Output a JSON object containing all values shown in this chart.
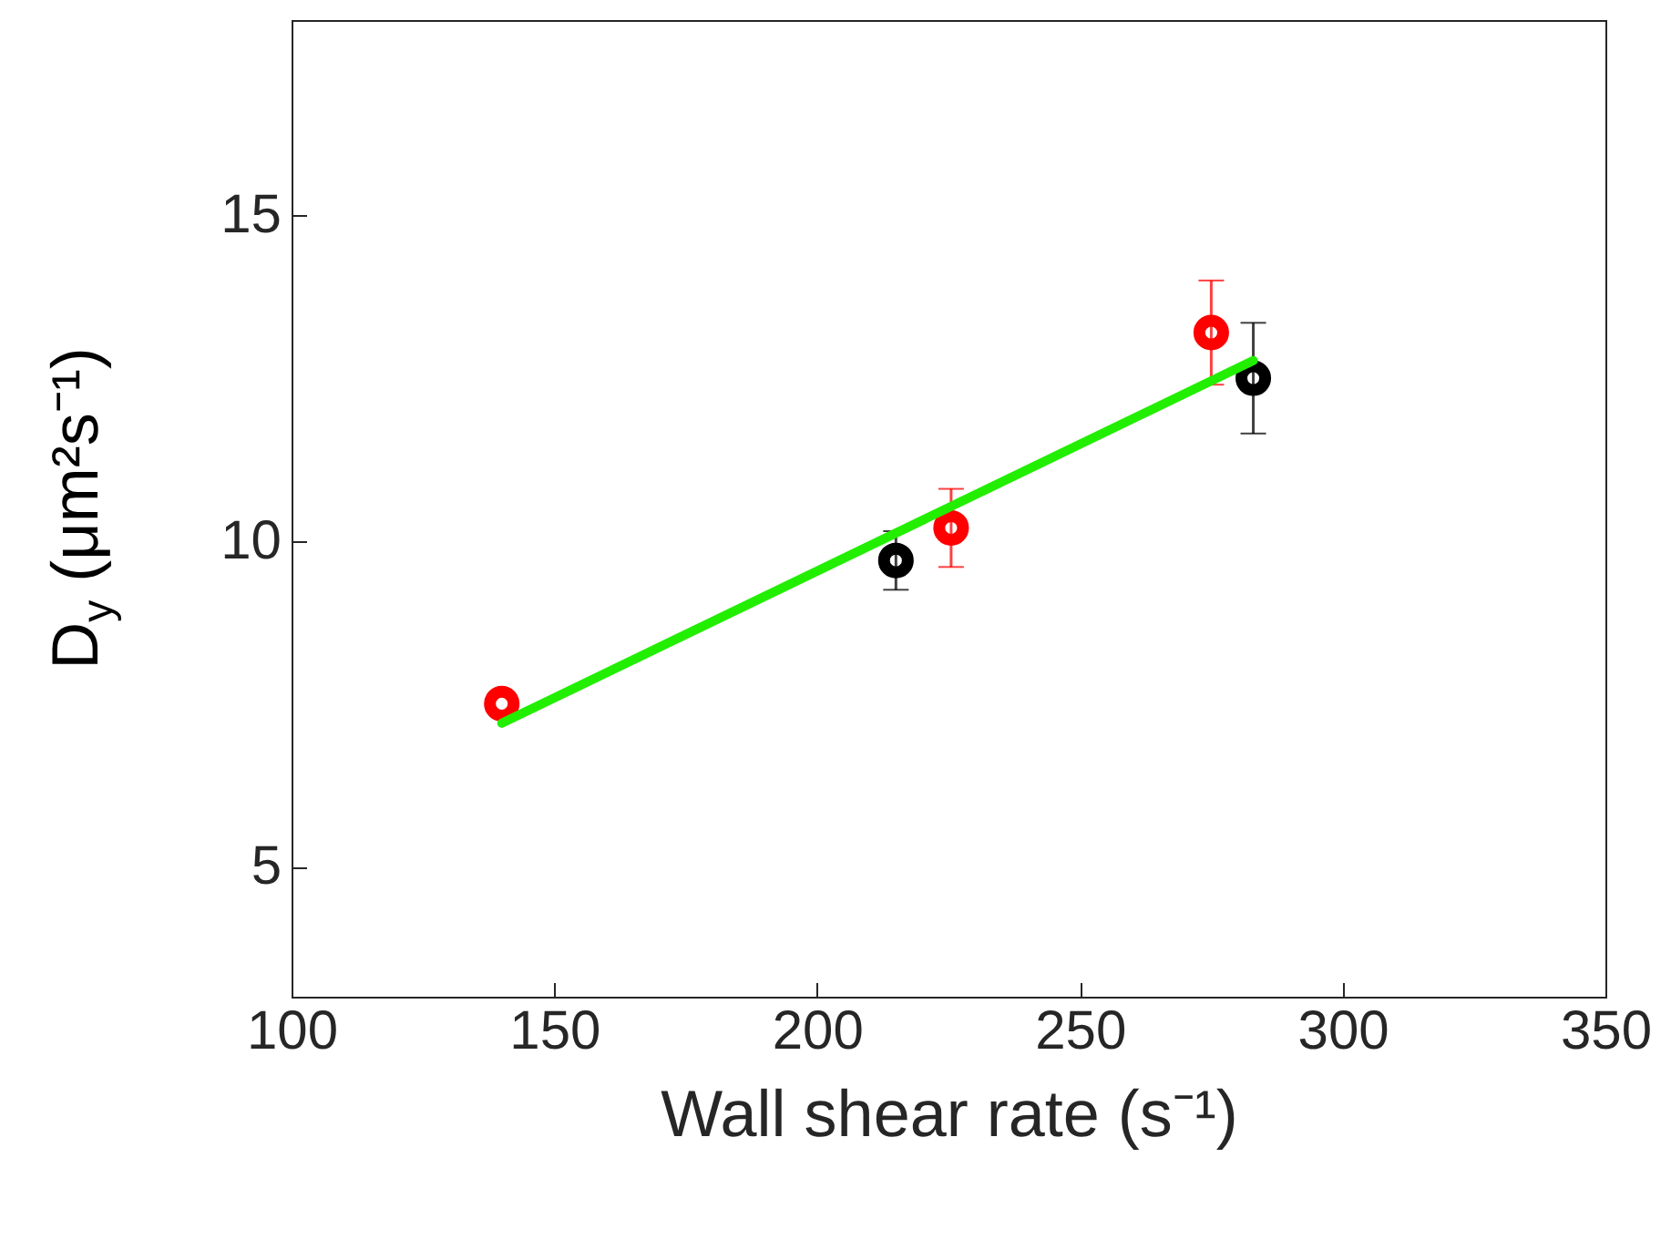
{
  "chart_data": {
    "type": "scatter",
    "xlabel": "Wall shear rate (s⁻¹)",
    "ylabel": "D$_{y}$ (μm²s⁻¹)",
    "xlim": [
      100,
      350
    ],
    "xticks": [
      100,
      150,
      200,
      250,
      300,
      350
    ],
    "ylim": [
      3,
      18
    ],
    "yticks": [
      5,
      10,
      15
    ],
    "grid": false,
    "series": [
      {
        "color": "#ff0000",
        "marker": "circle",
        "x": [
          140,
          225.5,
          275
        ],
        "values": [
          7.5,
          10.2,
          13.2
        ],
        "errors": [
          null,
          0.6,
          0.8
        ]
      },
      {
        "color": "#000000",
        "marker": "circle",
        "x": [
          215,
          283
        ],
        "values": [
          9.7,
          12.5
        ],
        "errors": [
          0.45,
          0.85
        ]
      },
      {
        "type": "line",
        "color": "#22ee00",
        "x": [
          140,
          283
        ],
        "values": [
          7.2,
          12.77
        ],
        "line_style": "solid"
      }
    ]
  }
}
